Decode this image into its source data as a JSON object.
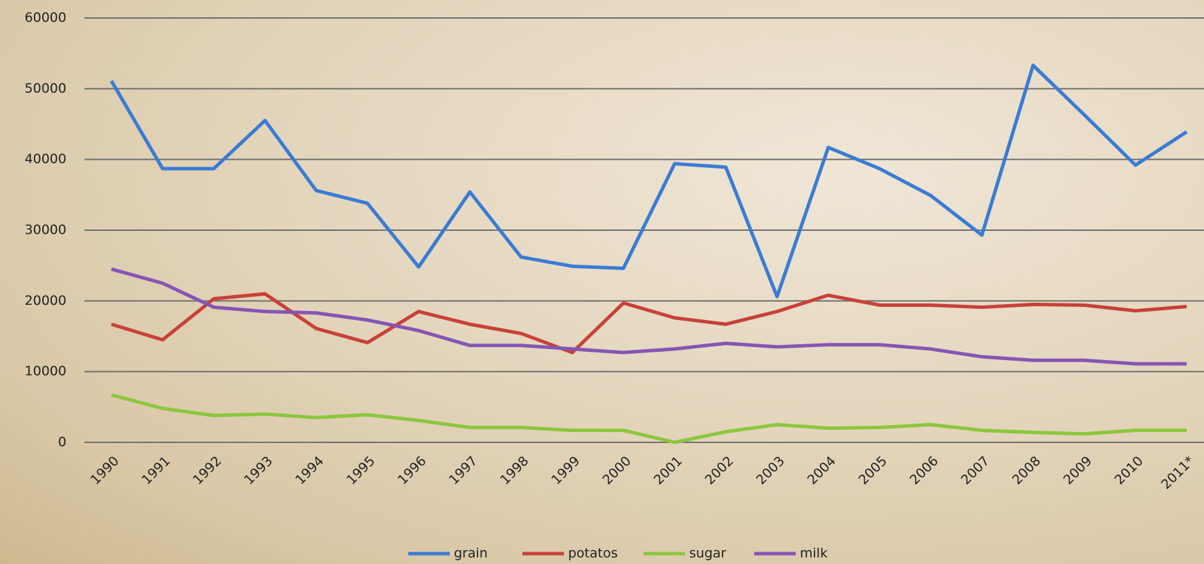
{
  "chart_data": {
    "type": "line",
    "categories": [
      "1990",
      "1991",
      "1992",
      "1993",
      "1994",
      "1995",
      "1996",
      "1997",
      "1998",
      "1999",
      "2000",
      "2001",
      "2002",
      "2003",
      "2004",
      "2005",
      "2006",
      "2007",
      "2008",
      "2009",
      "2010",
      "2011*"
    ],
    "series": [
      {
        "name": "grain",
        "color": "#3a7bd5",
        "values": [
          51100,
          38700,
          38700,
          45500,
          35600,
          33800,
          24800,
          35400,
          26200,
          24900,
          24600,
          39400,
          38900,
          20600,
          41700,
          38700,
          34900,
          29300,
          53300,
          46300,
          39200,
          43900
        ]
      },
      {
        "name": "potatos",
        "color": "#c8413a",
        "values": [
          16700,
          14500,
          20300,
          21000,
          16100,
          14100,
          18500,
          16700,
          15400,
          12700,
          19700,
          17600,
          16700,
          18500,
          20800,
          19400,
          19400,
          19100,
          19500,
          19400,
          18600,
          19200
        ]
      },
      {
        "name": "sugar",
        "color": "#8cc63f",
        "values": [
          6700,
          4800,
          3800,
          4000,
          3500,
          3900,
          3100,
          2100,
          2100,
          1700,
          1700,
          0,
          1500,
          2500,
          2000,
          2100,
          2500,
          1700,
          1400,
          1200,
          1700,
          1700
        ]
      },
      {
        "name": "milk",
        "color": "#8655b5",
        "values": [
          24500,
          22500,
          19100,
          18500,
          18300,
          17300,
          15800,
          13700,
          13700,
          13200,
          12700,
          13200,
          14000,
          13500,
          13800,
          13800,
          13200,
          12100,
          11600,
          11600,
          11100,
          11100
        ]
      }
    ],
    "ylim": [
      0,
      60000
    ],
    "yticks": [
      0,
      10000,
      20000,
      30000,
      40000,
      50000,
      60000
    ],
    "grid": true,
    "legend": "bottom"
  }
}
